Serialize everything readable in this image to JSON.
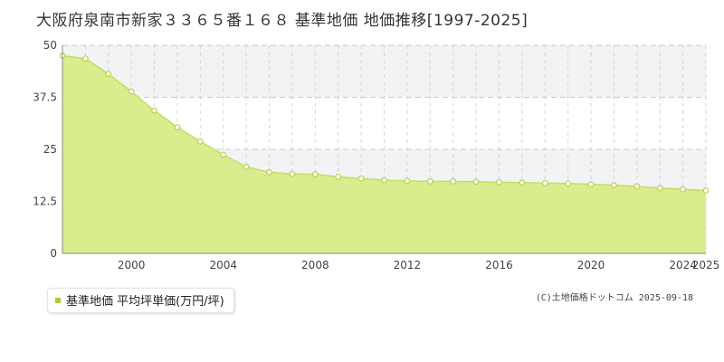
{
  "chart_data": {
    "type": "area",
    "title": "大阪府泉南市新家３３６５番１６８ 基準地価 地価推移[1997-2025]",
    "xlabel": "",
    "ylabel": "",
    "xlim": [
      1997,
      2025
    ],
    "ylim": [
      0,
      50
    ],
    "x_ticks": [
      2000,
      2004,
      2008,
      2012,
      2016,
      2020,
      2024,
      2025
    ],
    "x_tick_labels": [
      "2000",
      "2004",
      "2008",
      "2012",
      "2016",
      "2020",
      "2024",
      "2025"
    ],
    "y_ticks": [
      0,
      12.5,
      25,
      37.5,
      50
    ],
    "y_tick_labels": [
      "0",
      "12.5",
      "25",
      "37.5",
      "50"
    ],
    "grid": true,
    "legend_position": "bottom-left",
    "x": [
      1997,
      1998,
      1999,
      2000,
      2001,
      2002,
      2003,
      2004,
      2005,
      2006,
      2007,
      2008,
      2009,
      2010,
      2011,
      2012,
      2013,
      2014,
      2015,
      2016,
      2017,
      2018,
      2019,
      2020,
      2021,
      2022,
      2023,
      2024,
      2025
    ],
    "series": [
      {
        "name": "基準地価 平均坪単価(万円/坪)",
        "values": [
          47.5,
          46.8,
          43.1,
          38.9,
          34.3,
          30.3,
          26.9,
          23.7,
          20.8,
          19.5,
          19.1,
          19.0,
          18.4,
          18.0,
          17.6,
          17.4,
          17.3,
          17.3,
          17.2,
          17.1,
          17.0,
          16.9,
          16.8,
          16.6,
          16.4,
          16.1,
          15.7,
          15.4,
          15.1
        ]
      }
    ],
    "colors": {
      "fill": "#d9ec8e",
      "line": "#c3de63",
      "marker_fill": "#ffffff",
      "marker_stroke": "#b5d34f",
      "grid": "#cccccc",
      "band": "#f3f3f5",
      "legend_marker": "#a8cc3a"
    }
  },
  "credit": "(C)土地価格ドットコム 2025-09-18"
}
